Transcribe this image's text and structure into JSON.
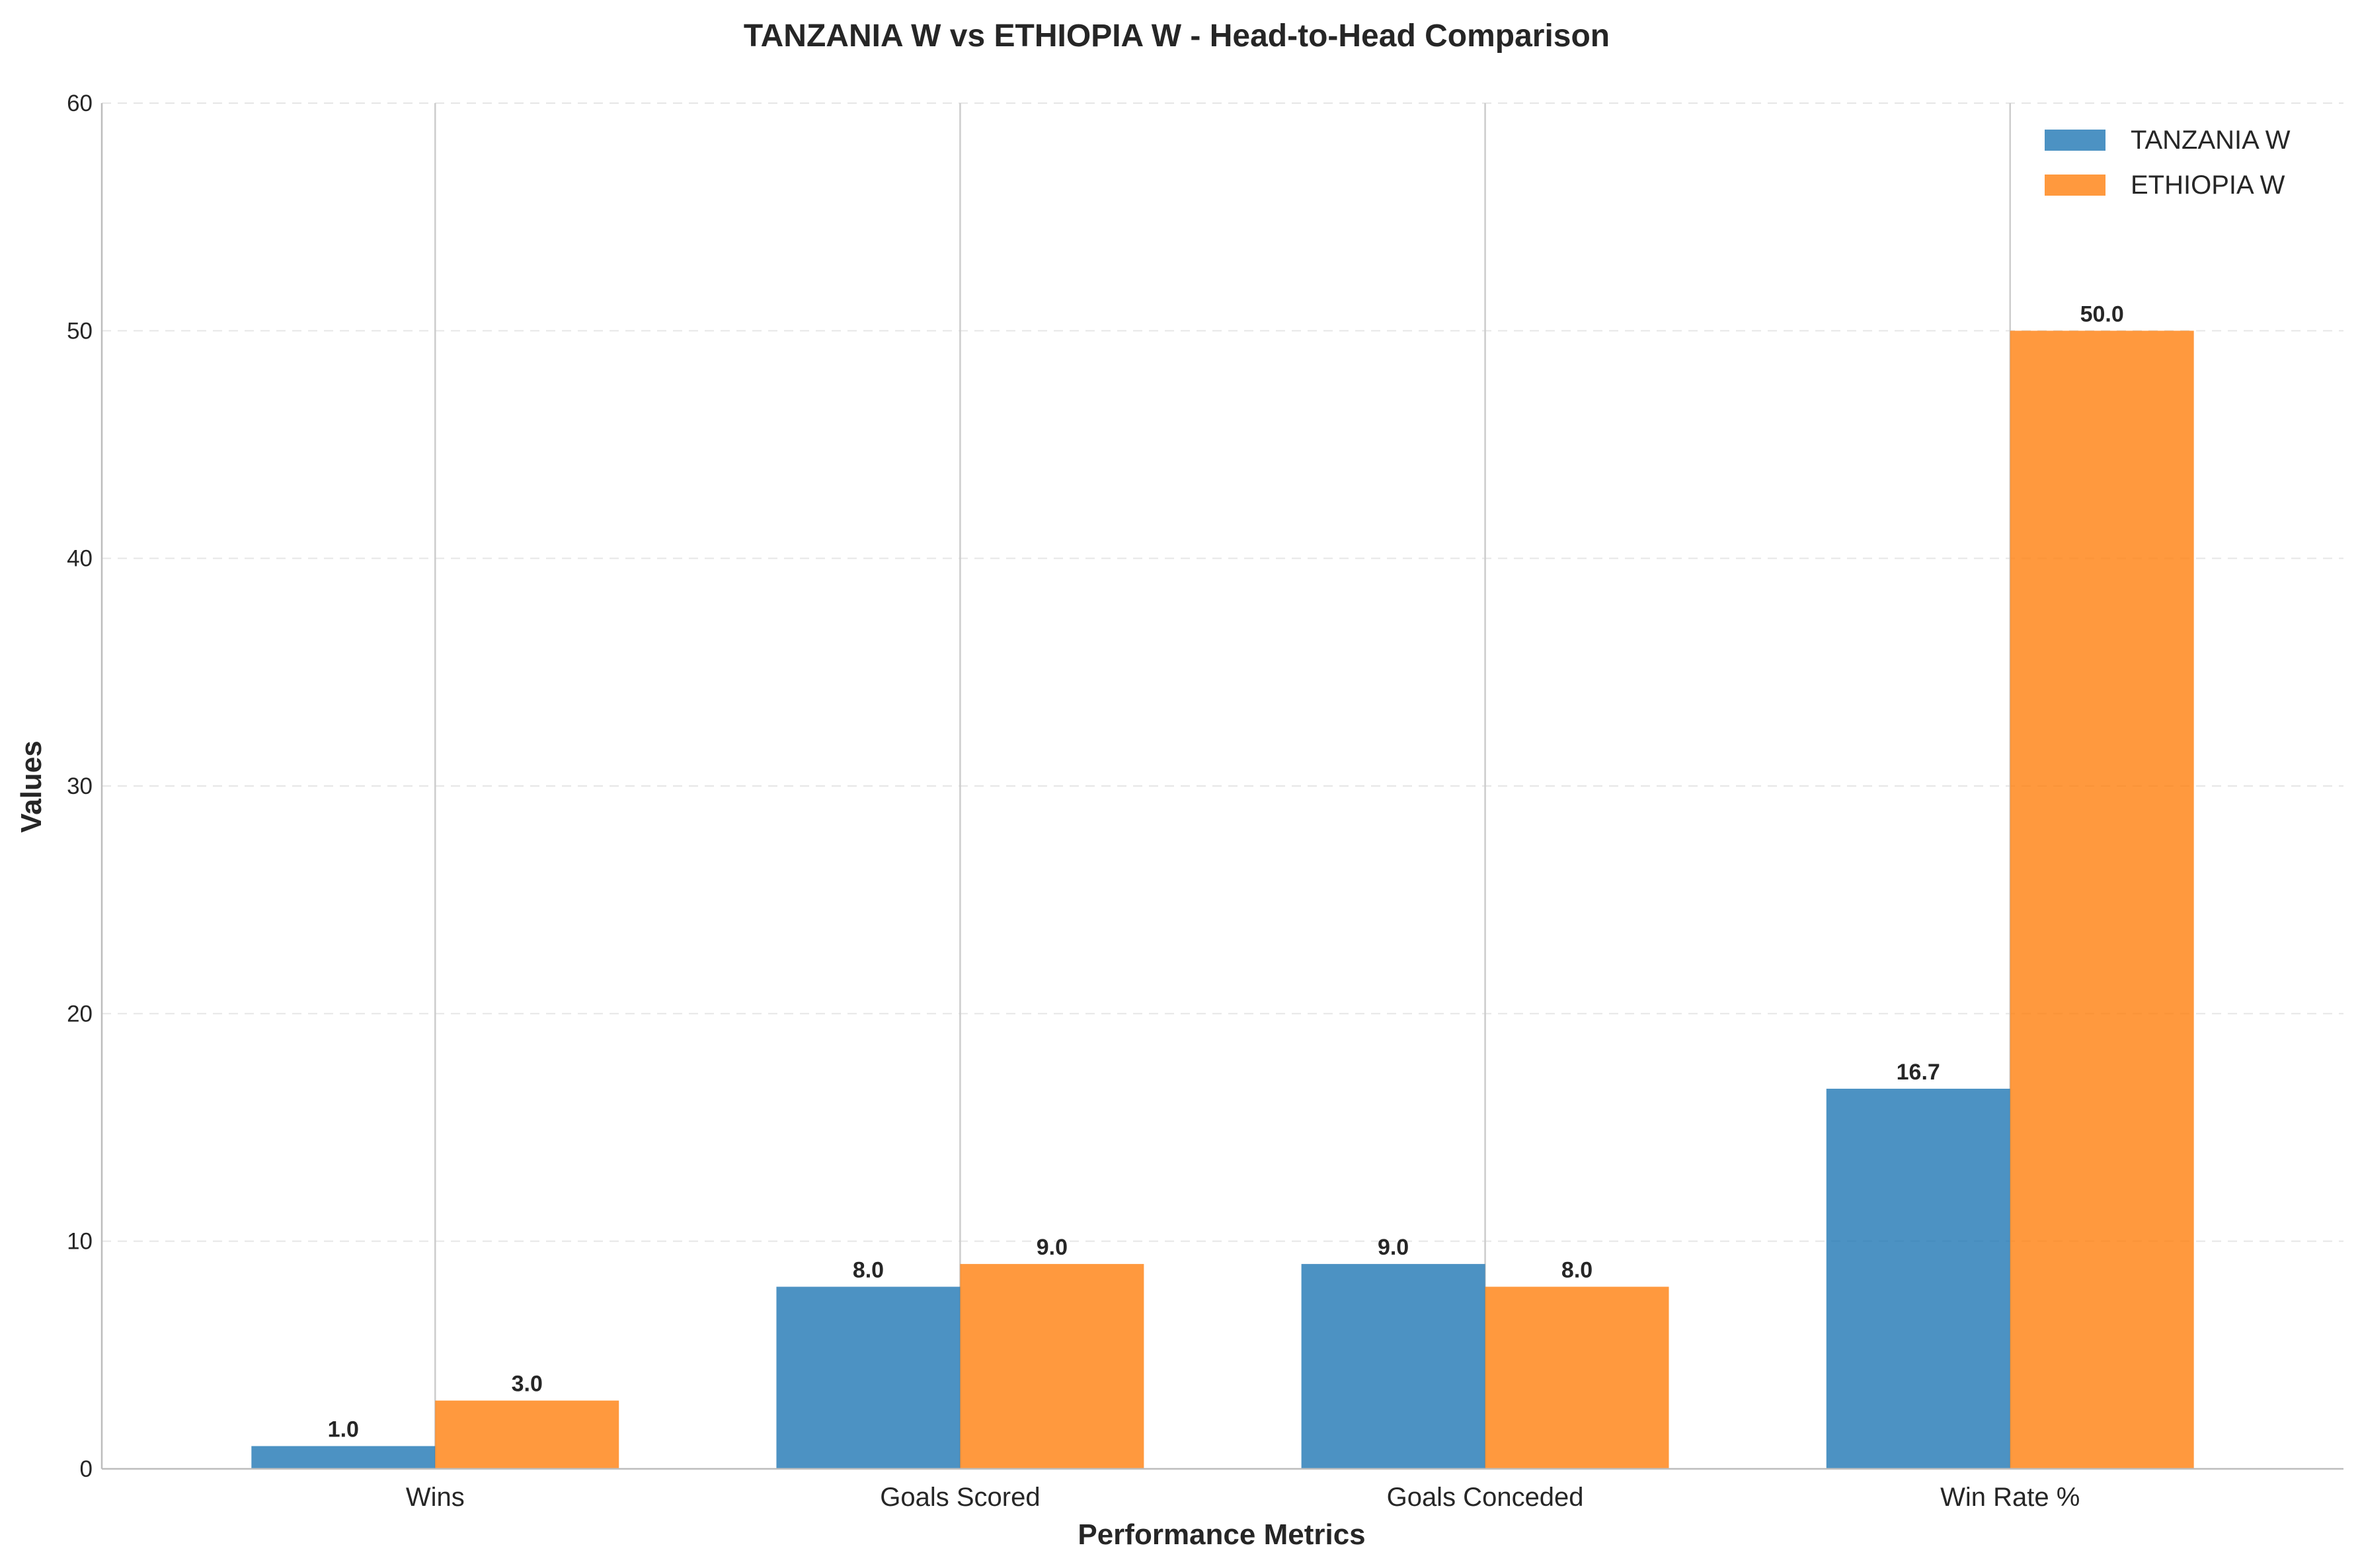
{
  "chart_data": {
    "type": "bar",
    "title": "TANZANIA W vs ETHIOPIA W - Head-to-Head Comparison",
    "xlabel": "Performance Metrics",
    "ylabel": "Values",
    "categories": [
      "Wins",
      "Goals Scored",
      "Goals Conceded",
      "Win Rate %"
    ],
    "series": [
      {
        "name": "TANZANIA W",
        "color": "#1f77b4",
        "values": [
          1.0,
          8.0,
          9.0,
          16.7
        ]
      },
      {
        "name": "ETHIOPIA W",
        "color": "#ff7f0e",
        "values": [
          3.0,
          9.0,
          8.0,
          50.0
        ]
      }
    ],
    "ylim": [
      0,
      60
    ],
    "yticks": [
      "0",
      "10",
      "20",
      "30",
      "40",
      "50",
      "60"
    ],
    "value_labels": [
      [
        "1.0",
        "8.0",
        "9.0",
        "16.7"
      ],
      [
        "3.0",
        "9.0",
        "8.0",
        "50.0"
      ]
    ],
    "grid": true,
    "legend_position": "upper-right"
  }
}
